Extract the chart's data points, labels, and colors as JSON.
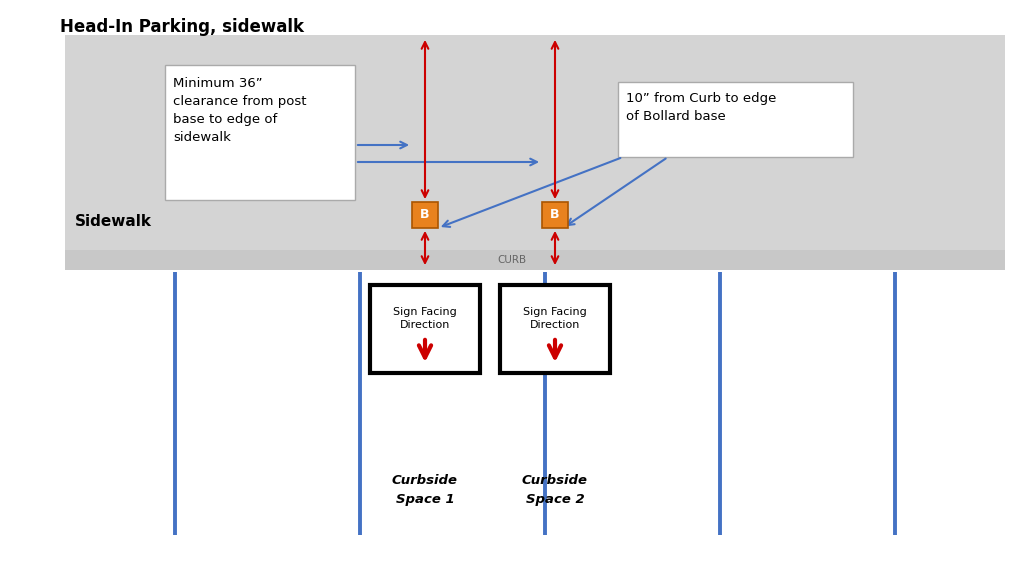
{
  "title": "Head-In Parking, sidewalk",
  "white_bg": "#ffffff",
  "sidewalk_color": "#d4d4d4",
  "curb_color": "#c8c8c8",
  "bollard_color": "#e8821e",
  "bollard_text_color": "#ffffff",
  "blue_line_color": "#4472c4",
  "red_arrow_color": "#cc0000",
  "post_line_color": "#4472c4",
  "sign_box_color": "#000000",
  "sign_bg": "#ffffff",
  "sign_arrow_color": "#cc0000",
  "text_box1": "Minimum 36”\nclearance from post\nbase to edge of\nsidewalk",
  "text_box2": "10” from Curb to edge\nof Bollard base",
  "sidewalk_label": "Sidewalk",
  "curb_label": "CURB",
  "space1_label": "Curbside\nSpace 1",
  "space2_label": "Curbside\nSpace 2",
  "sign_label": "Sign Facing\nDirection",
  "figsize": [
    10.24,
    5.75
  ],
  "dpi": 100
}
